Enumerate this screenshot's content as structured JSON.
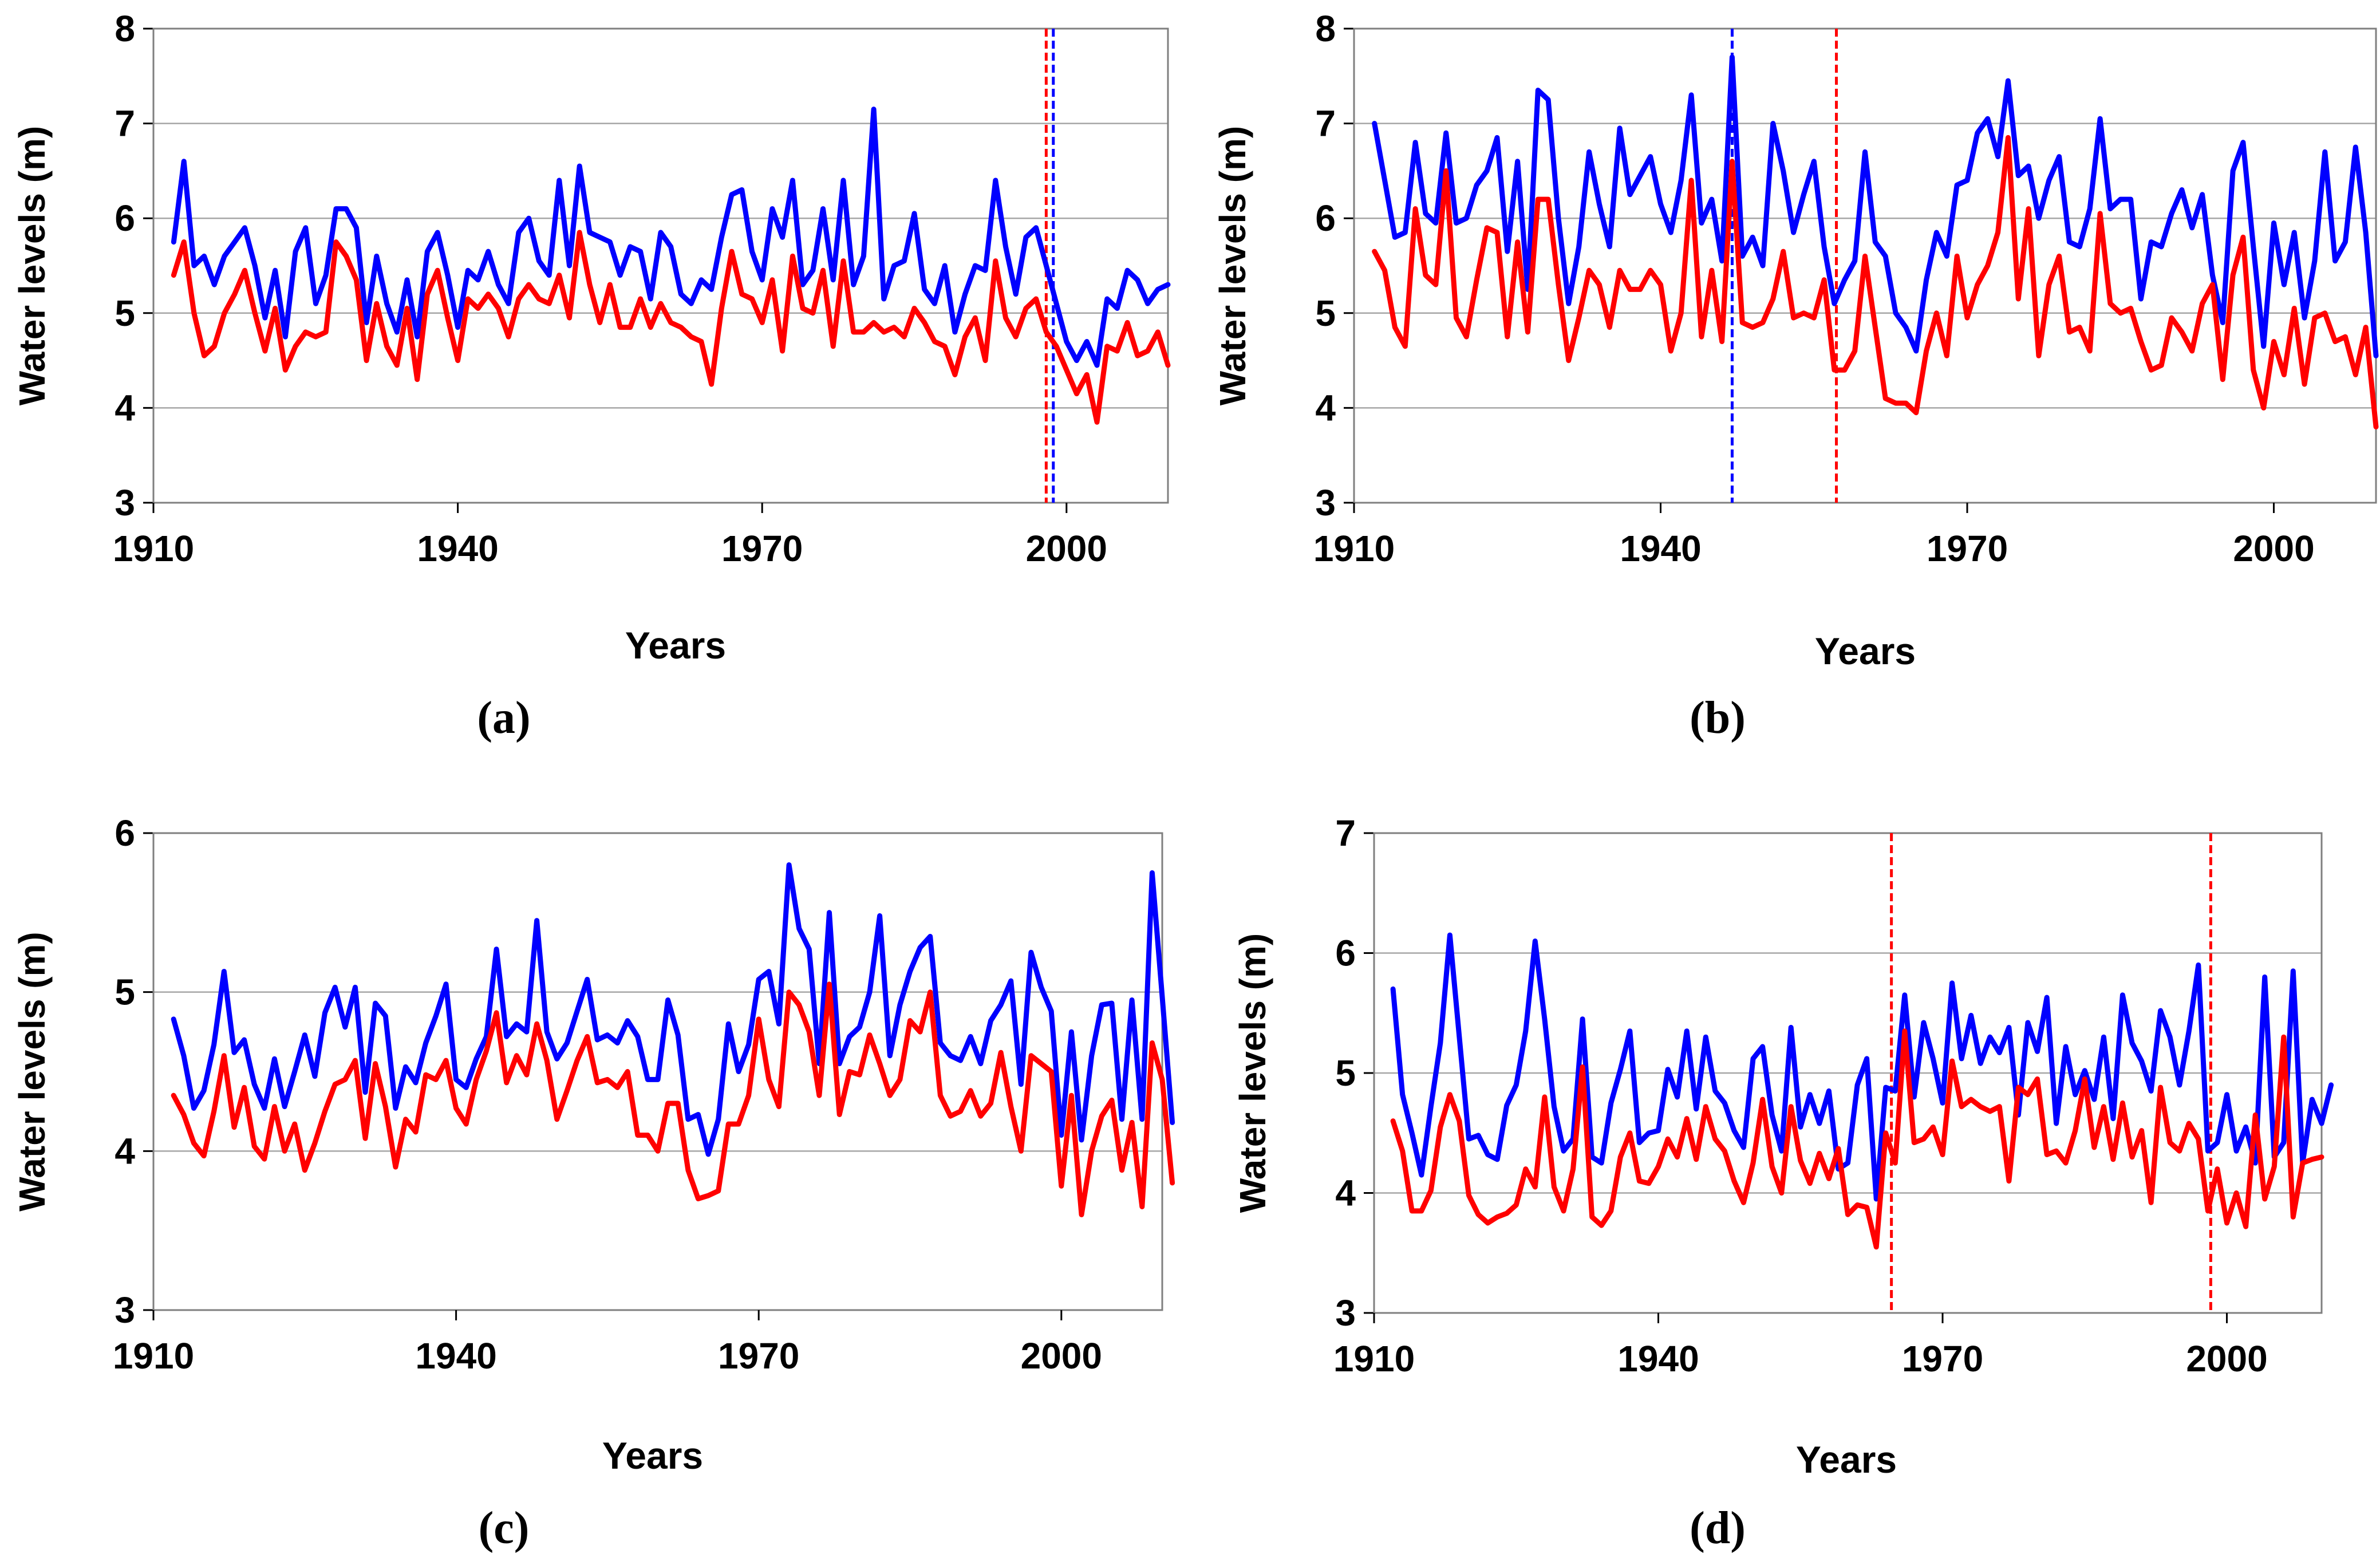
{
  "colors": {
    "upper": "#0000ff",
    "lower": "#ff0000",
    "grid": "#a6a6a6",
    "axis": "#7f7f7f",
    "text": "#000000"
  },
  "chart_data": [
    {
      "panel": "(a)",
      "type": "line",
      "title": "",
      "xlabel": "Years",
      "ylabel": "Water levels (m)",
      "xlim": [
        1910,
        2010
      ],
      "ylim": [
        3,
        8
      ],
      "xticks": [
        1910,
        1940,
        1970,
        2000
      ],
      "yticks": [
        3,
        4,
        5,
        6,
        7,
        8
      ],
      "grid": "horizontal",
      "change_points": [
        {
          "year": 1998,
          "color": "red"
        },
        {
          "year": 1998.7,
          "color": "blue"
        }
      ],
      "series": [
        {
          "color": "blue",
          "x0": 1912,
          "values": [
            5.75,
            6.6,
            5.5,
            5.6,
            5.3,
            5.6,
            5.75,
            5.9,
            5.5,
            4.95,
            5.45,
            4.75,
            5.65,
            5.9,
            5.1,
            5.4,
            6.1,
            6.1,
            5.9,
            4.9,
            5.6,
            5.1,
            4.8,
            5.35,
            4.75,
            5.65,
            5.85,
            5.4,
            4.85,
            5.45,
            5.35,
            5.65,
            5.3,
            5.1,
            5.85,
            6.0,
            5.55,
            5.4,
            6.4,
            5.5,
            6.55,
            5.85,
            5.8,
            5.75,
            5.4,
            5.7,
            5.65,
            5.15,
            5.85,
            5.7,
            5.2,
            5.1,
            5.35,
            5.25,
            5.8,
            6.25,
            6.3,
            5.65,
            5.35,
            6.1,
            5.8,
            6.4,
            5.3,
            5.45,
            6.1,
            5.35,
            6.4,
            5.3,
            5.6,
            7.15,
            5.15,
            5.5,
            5.55,
            6.05,
            5.25,
            5.1,
            5.5,
            4.8,
            5.2,
            5.5,
            5.45,
            6.4,
            5.7,
            5.2,
            5.8,
            5.9,
            5.5,
            5.1,
            4.7,
            4.5,
            4.7,
            4.45,
            5.15,
            5.05,
            5.45,
            5.35,
            5.1,
            5.25,
            5.3
          ]
        },
        {
          "color": "red",
          "x0": 1912,
          "values": [
            5.4,
            5.75,
            5.0,
            4.55,
            4.65,
            5.0,
            5.2,
            5.45,
            5.0,
            4.6,
            5.05,
            4.4,
            4.65,
            4.8,
            4.75,
            4.8,
            5.75,
            5.6,
            5.35,
            4.5,
            5.1,
            4.65,
            4.45,
            5.05,
            4.3,
            5.2,
            5.45,
            4.95,
            4.5,
            5.15,
            5.05,
            5.2,
            5.05,
            4.75,
            5.15,
            5.3,
            5.15,
            5.1,
            5.4,
            4.95,
            5.85,
            5.3,
            4.9,
            5.3,
            4.85,
            4.85,
            5.15,
            4.85,
            5.1,
            4.9,
            4.85,
            4.75,
            4.7,
            4.25,
            5.05,
            5.65,
            5.2,
            5.15,
            4.9,
            5.35,
            4.6,
            5.6,
            5.05,
            5.0,
            5.45,
            4.65,
            5.55,
            4.8,
            4.8,
            4.9,
            4.8,
            4.85,
            4.75,
            5.05,
            4.9,
            4.7,
            4.65,
            4.35,
            4.75,
            4.95,
            4.5,
            5.55,
            4.95,
            4.75,
            5.05,
            5.15,
            4.8,
            4.65,
            4.4,
            4.15,
            4.35,
            3.85,
            4.65,
            4.6,
            4.9,
            4.55,
            4.6,
            4.8,
            4.45
          ]
        }
      ]
    },
    {
      "panel": "(b)",
      "type": "line",
      "title": "",
      "xlabel": "Years",
      "ylabel": "Water levels (m)",
      "xlim": [
        1910,
        2010
      ],
      "ylim": [
        3,
        8
      ],
      "xticks": [
        1910,
        1940,
        1970,
        2000
      ],
      "yticks": [
        3,
        4,
        5,
        6,
        7,
        8
      ],
      "grid": "horizontal",
      "change_points": [
        {
          "year": 1947,
          "color": "blue"
        },
        {
          "year": 1957.2,
          "color": "red"
        }
      ],
      "series": [
        {
          "color": "blue",
          "x0": 1912,
          "values": [
            7.0,
            6.4,
            5.8,
            5.85,
            6.8,
            6.05,
            5.95,
            6.9,
            5.95,
            6.0,
            6.35,
            6.5,
            6.85,
            5.65,
            6.6,
            5.25,
            7.35,
            7.25,
            6.0,
            5.1,
            5.7,
            6.7,
            6.15,
            5.7,
            6.95,
            6.25,
            6.45,
            6.65,
            6.15,
            5.85,
            6.4,
            7.3,
            5.95,
            6.2,
            5.55,
            7.7,
            5.6,
            5.8,
            5.5,
            7.0,
            6.5,
            5.85,
            6.25,
            6.6,
            5.7,
            5.1,
            5.35,
            5.55,
            6.7,
            5.75,
            5.6,
            5.0,
            4.85,
            4.6,
            5.35,
            5.85,
            5.6,
            6.35,
            6.4,
            6.9,
            7.05,
            6.65,
            7.45,
            6.45,
            6.55,
            6.0,
            6.4,
            6.65,
            5.75,
            5.7,
            6.1,
            7.05,
            6.1,
            6.2,
            6.2,
            5.15,
            5.75,
            5.7,
            6.05,
            6.3,
            5.9,
            6.25,
            5.4,
            4.9,
            6.5,
            6.8,
            5.7,
            4.65,
            5.95,
            5.3,
            5.85,
            4.95,
            5.55,
            6.7,
            5.55,
            5.75,
            6.75,
            5.85,
            4.55
          ]
        },
        {
          "color": "red",
          "x0": 1912,
          "values": [
            5.65,
            5.45,
            4.85,
            4.65,
            6.1,
            5.4,
            5.3,
            6.5,
            4.95,
            4.75,
            5.35,
            5.9,
            5.85,
            4.75,
            5.75,
            4.8,
            6.2,
            6.2,
            5.3,
            4.5,
            4.95,
            5.45,
            5.3,
            4.85,
            5.45,
            5.25,
            5.25,
            5.45,
            5.3,
            4.6,
            5.0,
            6.4,
            4.75,
            5.45,
            4.7,
            6.6,
            4.9,
            4.85,
            4.9,
            5.15,
            5.65,
            4.95,
            5.0,
            4.95,
            5.35,
            4.4,
            4.4,
            4.6,
            5.6,
            4.85,
            4.1,
            4.05,
            4.05,
            3.95,
            4.6,
            5.0,
            4.55,
            5.6,
            4.95,
            5.3,
            5.5,
            5.85,
            6.85,
            5.15,
            6.1,
            4.55,
            5.3,
            5.6,
            4.8,
            4.85,
            4.6,
            6.05,
            5.1,
            5.0,
            5.05,
            4.7,
            4.4,
            4.45,
            4.95,
            4.8,
            4.6,
            5.1,
            5.3,
            4.3,
            5.4,
            5.8,
            4.4,
            4.0,
            4.7,
            4.35,
            5.05,
            4.25,
            4.95,
            5.0,
            4.7,
            4.75,
            4.35,
            4.85,
            3.8
          ]
        }
      ]
    },
    {
      "panel": "(c)",
      "type": "line",
      "title": "",
      "xlabel": "Years",
      "ylabel": "Water levels (m)",
      "xlim": [
        1910,
        2010
      ],
      "ylim": [
        3,
        6
      ],
      "xticks": [
        1910,
        1940,
        1970,
        2000
      ],
      "yticks": [
        3,
        4,
        5,
        6
      ],
      "grid": "horizontal",
      "change_points": [],
      "series": [
        {
          "color": "blue",
          "x0": 1912,
          "values": [
            4.83,
            4.6,
            4.27,
            4.38,
            4.67,
            5.13,
            4.62,
            4.7,
            4.42,
            4.27,
            4.58,
            4.28,
            4.5,
            4.73,
            4.47,
            4.87,
            5.03,
            4.78,
            5.03,
            4.37,
            4.93,
            4.85,
            4.27,
            4.53,
            4.43,
            4.68,
            4.85,
            5.05,
            4.45,
            4.4,
            4.58,
            4.72,
            5.27,
            4.72,
            4.8,
            4.75,
            5.45,
            4.75,
            4.58,
            4.68,
            4.88,
            5.08,
            4.7,
            4.73,
            4.68,
            4.82,
            4.72,
            4.45,
            4.45,
            4.95,
            4.73,
            4.2,
            4.23,
            3.98,
            4.2,
            4.8,
            4.5,
            4.67,
            5.08,
            5.13,
            4.8,
            5.8,
            5.4,
            5.27,
            4.55,
            5.5,
            4.55,
            4.72,
            4.78,
            5.0,
            5.48,
            4.6,
            4.92,
            5.13,
            5.28,
            5.35,
            4.68,
            4.6,
            4.57,
            4.72,
            4.55,
            4.82,
            4.92,
            5.07,
            4.42,
            5.25,
            5.03,
            4.88,
            4.1,
            4.75,
            4.07,
            4.6,
            4.92,
            4.93,
            4.2,
            4.95,
            4.2,
            5.75,
            4.97,
            4.18
          ]
        },
        {
          "color": "red",
          "x0": 1912,
          "values": [
            4.35,
            4.23,
            4.05,
            3.97,
            4.25,
            4.6,
            4.15,
            4.4,
            4.03,
            3.95,
            4.28,
            4.0,
            4.17,
            3.88,
            4.05,
            4.25,
            4.42,
            4.45,
            4.57,
            4.08,
            4.55,
            4.28,
            3.9,
            4.2,
            4.12,
            4.48,
            4.45,
            4.57,
            4.27,
            4.17,
            4.45,
            4.63,
            4.87,
            4.43,
            4.6,
            4.48,
            4.8,
            4.57,
            4.2,
            4.38,
            4.57,
            4.72,
            4.43,
            4.45,
            4.4,
            4.5,
            4.1,
            4.1,
            4.0,
            4.3,
            4.3,
            3.88,
            3.7,
            3.72,
            3.75,
            4.17,
            4.17,
            4.35,
            4.83,
            4.45,
            4.28,
            5.0,
            4.92,
            4.75,
            4.35,
            5.05,
            4.23,
            4.5,
            4.48,
            4.73,
            4.55,
            4.35,
            4.45,
            4.82,
            4.75,
            5.0,
            4.35,
            4.22,
            4.25,
            4.38,
            4.22,
            4.3,
            4.62,
            4.28,
            4.0,
            4.6,
            4.55,
            4.5,
            3.78,
            4.35,
            3.6,
            4.0,
            4.22,
            4.32,
            3.88,
            4.18,
            3.65,
            4.68,
            4.45,
            3.8
          ]
        }
      ]
    },
    {
      "panel": "(d)",
      "type": "line",
      "title": "",
      "xlabel": "Years",
      "ylabel": "Water levels (m)",
      "xlim": [
        1910,
        2010
      ],
      "ylim": [
        3,
        7
      ],
      "xticks": [
        1910,
        1940,
        1970,
        2000
      ],
      "yticks": [
        3,
        4,
        5,
        6,
        7
      ],
      "grid": "horizontal",
      "change_points": [
        {
          "year": 1964.6,
          "color": "red"
        },
        {
          "year": 1998.3,
          "color": "red"
        }
      ],
      "series": [
        {
          "color": "blue",
          "x0": 1912,
          "values": [
            5.7,
            4.82,
            4.5,
            4.15,
            4.72,
            5.25,
            6.15,
            5.3,
            4.45,
            4.48,
            4.32,
            4.28,
            4.73,
            4.9,
            5.35,
            6.1,
            5.45,
            4.72,
            4.35,
            4.45,
            5.45,
            4.3,
            4.25,
            4.75,
            5.03,
            5.35,
            4.42,
            4.5,
            4.52,
            5.03,
            4.8,
            5.35,
            4.7,
            5.3,
            4.85,
            4.75,
            4.52,
            4.38,
            5.12,
            5.22,
            4.65,
            4.35,
            5.38,
            4.55,
            4.82,
            4.58,
            4.85,
            4.2,
            4.25,
            4.9,
            5.12,
            3.95,
            4.88,
            4.85,
            5.65,
            4.8,
            5.42,
            5.12,
            4.75,
            5.75,
            5.12,
            5.48,
            5.08,
            5.3,
            5.17,
            5.38,
            4.65,
            5.42,
            5.18,
            5.63,
            4.58,
            5.22,
            4.82,
            5.02,
            4.78,
            5.3,
            4.62,
            5.65,
            5.25,
            5.1,
            4.85,
            5.52,
            5.3,
            4.9,
            5.35,
            5.9,
            4.35,
            4.42,
            4.82,
            4.35,
            4.55,
            4.25,
            5.8,
            4.3,
            4.42,
            5.85,
            4.25,
            4.78,
            4.58,
            4.9
          ]
        },
        {
          "color": "red",
          "x0": 1912,
          "values": [
            4.6,
            4.35,
            3.85,
            3.85,
            4.02,
            4.55,
            4.82,
            4.6,
            3.98,
            3.82,
            3.75,
            3.8,
            3.83,
            3.9,
            4.2,
            4.05,
            4.8,
            4.05,
            3.85,
            4.2,
            5.05,
            3.8,
            3.73,
            3.85,
            4.3,
            4.5,
            4.1,
            4.08,
            4.22,
            4.45,
            4.3,
            4.62,
            4.28,
            4.72,
            4.45,
            4.35,
            4.1,
            3.92,
            4.25,
            4.78,
            4.22,
            4.0,
            4.72,
            4.27,
            4.08,
            4.33,
            4.12,
            4.37,
            3.82,
            3.9,
            3.88,
            3.55,
            4.5,
            4.25,
            5.35,
            4.42,
            4.45,
            4.55,
            4.32,
            5.1,
            4.72,
            4.78,
            4.72,
            4.68,
            4.72,
            4.1,
            4.88,
            4.82,
            4.95,
            4.32,
            4.35,
            4.25,
            4.52,
            4.95,
            4.38,
            4.72,
            4.28,
            4.75,
            4.3,
            4.52,
            3.92,
            4.88,
            4.42,
            4.35,
            4.58,
            4.45,
            3.85,
            4.2,
            3.75,
            4.0,
            3.72,
            4.65,
            3.95,
            4.22,
            5.3,
            3.8,
            4.25,
            4.28,
            4.3
          ]
        }
      ]
    }
  ]
}
